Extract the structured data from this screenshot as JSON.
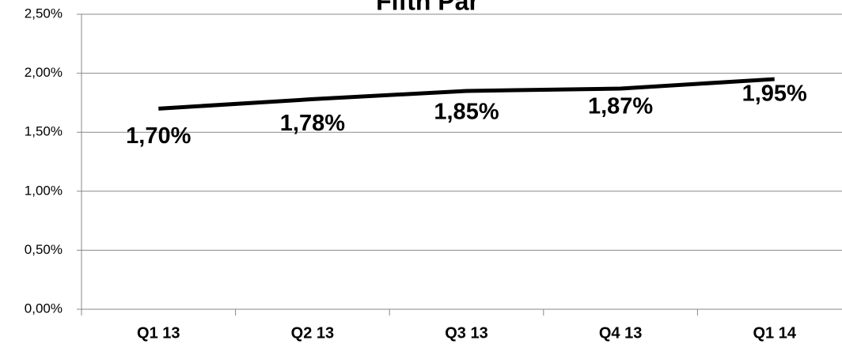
{
  "chart_data": {
    "type": "line",
    "title": "Fifth Par",
    "categories": [
      "Q1 13",
      "Q2 13",
      "Q3 13",
      "Q4 13",
      "Q1 14"
    ],
    "series": [
      {
        "name": "Fifth Par",
        "color": "#000000",
        "values": [
          1.7,
          1.78,
          1.85,
          1.87,
          1.95
        ],
        "value_labels": [
          "1,70%",
          "1,78%",
          "1,85%",
          "1,87%",
          "1,95%"
        ]
      }
    ],
    "ylim": [
      0,
      2.5
    ],
    "yticks": [
      {
        "value": 0,
        "label": "0,00%"
      },
      {
        "value": 0.5,
        "label": "0,50%"
      },
      {
        "value": 1,
        "label": "1,00%"
      },
      {
        "value": 1.5,
        "label": "1,50%"
      },
      {
        "value": 2,
        "label": "2,00%"
      },
      {
        "value": 2.5,
        "label": "2,50%"
      }
    ],
    "grid": true
  }
}
